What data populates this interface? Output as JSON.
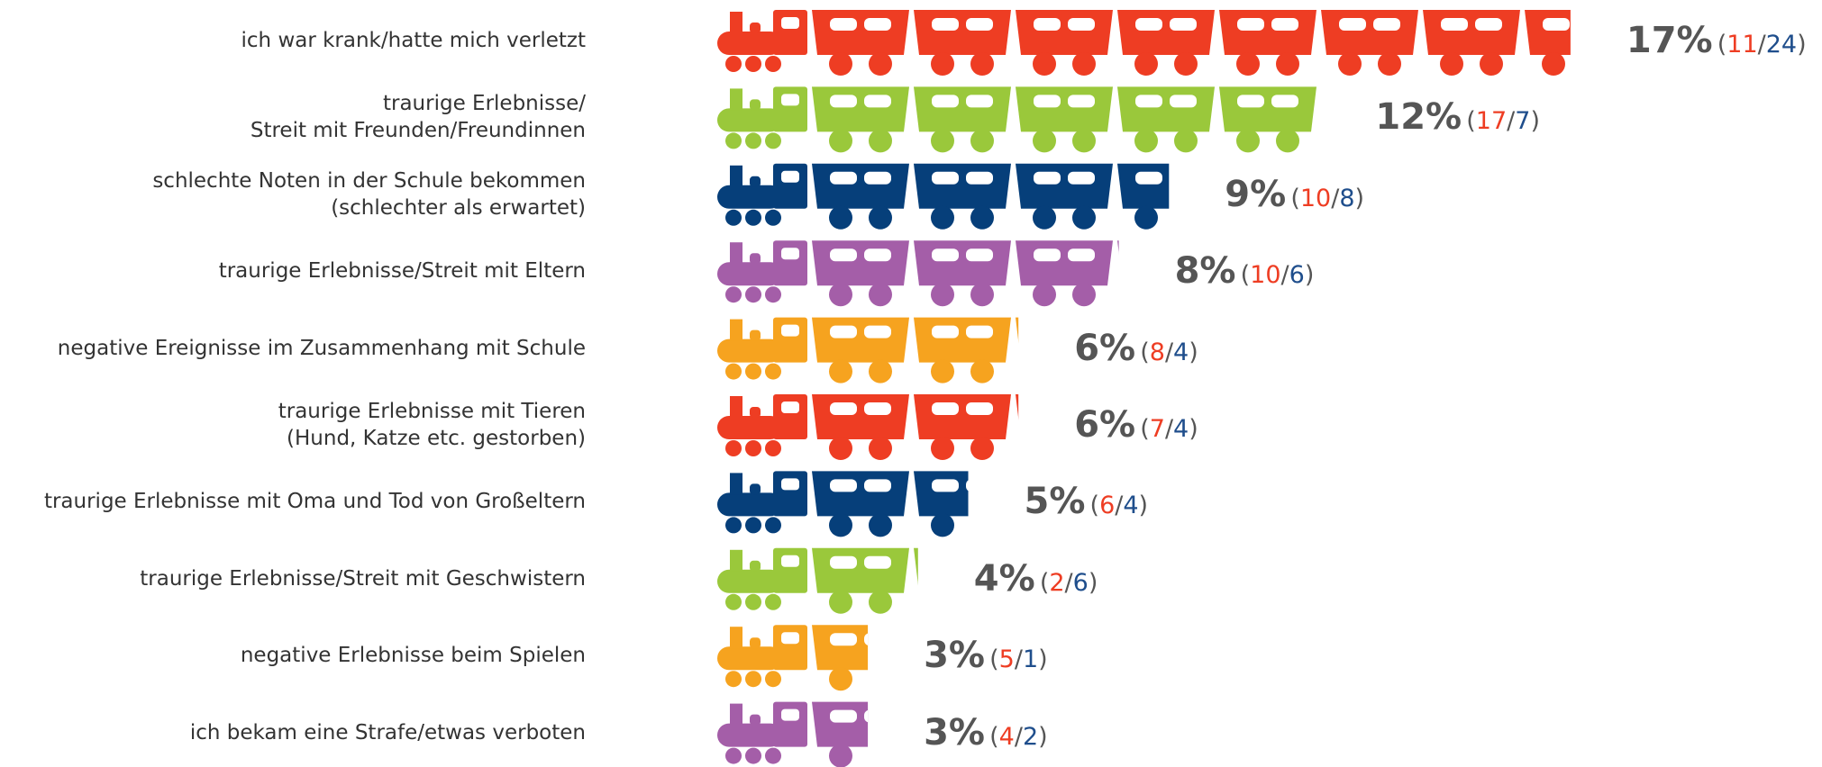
{
  "chart_data": {
    "type": "pictograph-bar",
    "categories": [
      "ich war krank/hatte mich verletzt",
      "traurige Erlebnisse/\nStreit mit Freunden/Freundinnen",
      "schlechte Noten in der Schule bekommen\n(schlechter als erwartet)",
      "traurige Erlebnisse/Streit mit Eltern",
      "negative Ereignisse im Zusammenhang mit Schule",
      "traurige Erlebnisse mit Tieren\n(Hund, Katze etc. gestorben)",
      "traurige Erlebnisse mit Oma und Tod von Großeltern",
      "traurige Erlebnisse/Streit mit Geschwistern",
      "negative Erlebnisse beim Spielen",
      "ich bekam eine Strafe/etwas verboten"
    ],
    "values": [
      17,
      12,
      9,
      8,
      6,
      6,
      5,
      4,
      3,
      3
    ],
    "value_labels": [
      "17%",
      "12%",
      "9%",
      "8%",
      "6%",
      "6%",
      "5%",
      "4%",
      "3%",
      "3%"
    ],
    "colors": [
      "#ee3d23",
      "#9ac83b",
      "#063f7a",
      "#a45ea8",
      "#f6a31f",
      "#ee3d23",
      "#063f7a",
      "#9ac83b",
      "#f6a31f",
      "#a45ea8"
    ],
    "counts_red": [
      11,
      17,
      10,
      10,
      8,
      7,
      6,
      2,
      5,
      4
    ],
    "counts_blue": [
      24,
      7,
      8,
      6,
      4,
      4,
      4,
      6,
      1,
      2
    ],
    "counts_red_color": "#ee3d23",
    "counts_blue_color": "#1f4e8c",
    "count_open": "(",
    "count_sep": "/",
    "count_close": ")"
  }
}
